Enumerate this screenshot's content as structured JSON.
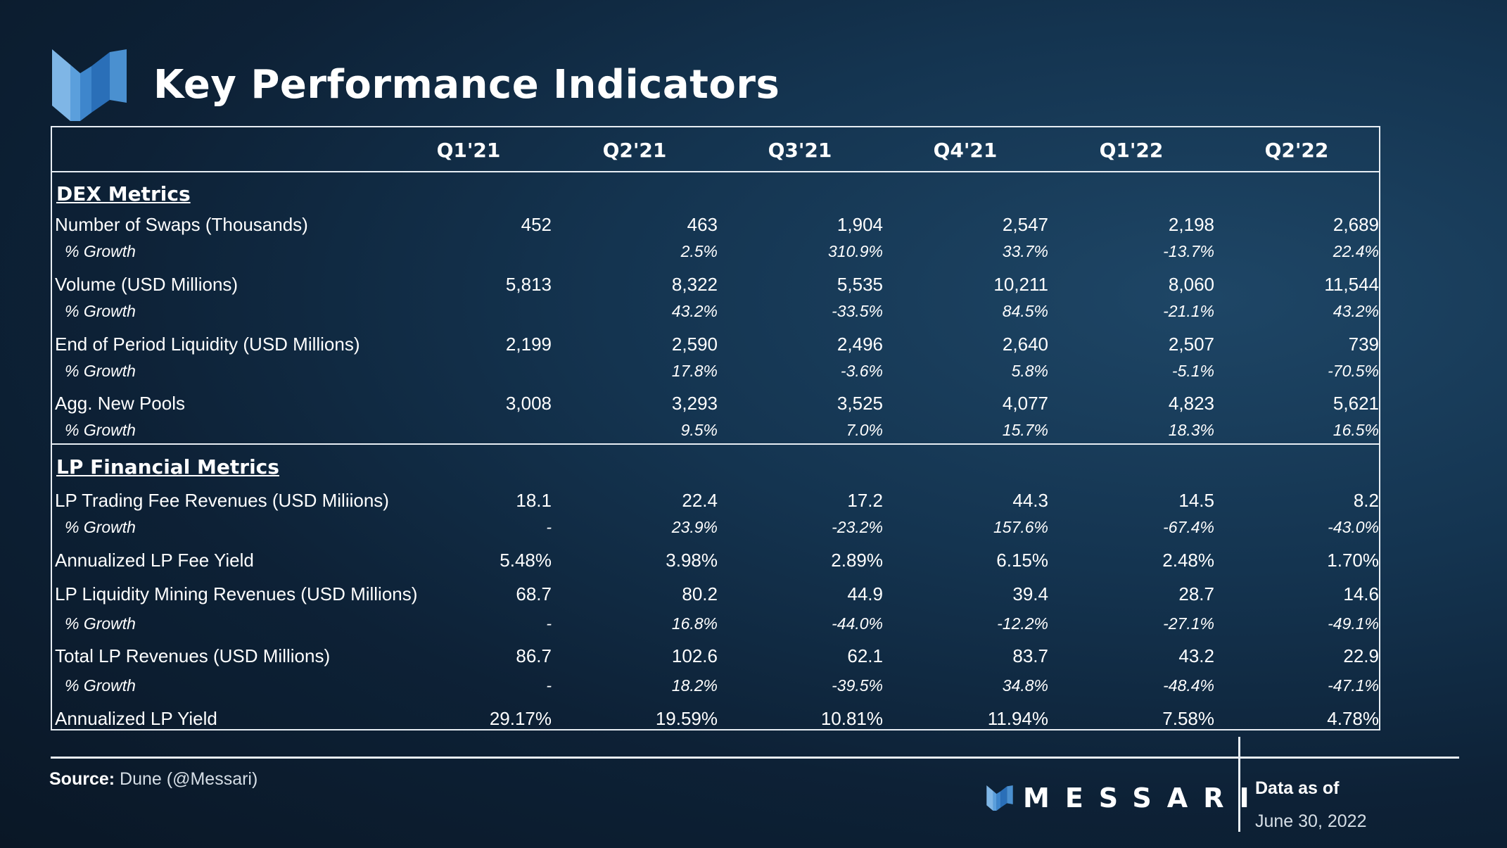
{
  "title": "Key Performance Indicators",
  "columns": [
    "Q1'21",
    "Q2'21",
    "Q3'21",
    "Q4'21",
    "Q1'22",
    "Q2'22"
  ],
  "sections": [
    {
      "heading": "DEX Metrics",
      "rows": [
        {
          "label": "Number of Swaps (Thousands)",
          "values": [
            "452",
            "463",
            "1,904",
            "2,547",
            "2,198",
            "2,689"
          ]
        },
        {
          "label": "% Growth",
          "growth": true,
          "values": [
            "",
            "2.5%",
            "310.9%",
            "33.7%",
            "-13.7%",
            "22.4%"
          ]
        },
        {
          "label": "Volume (USD Millions)",
          "values": [
            "5,813",
            "8,322",
            "5,535",
            "10,211",
            "8,060",
            "11,544"
          ]
        },
        {
          "label": "% Growth",
          "growth": true,
          "values": [
            "",
            "43.2%",
            "-33.5%",
            "84.5%",
            "-21.1%",
            "43.2%"
          ]
        },
        {
          "label": "End of Period Liquidity (USD Millions)",
          "values": [
            "2,199",
            "2,590",
            "2,496",
            "2,640",
            "2,507",
            "739"
          ]
        },
        {
          "label": "% Growth",
          "growth": true,
          "values": [
            "",
            "17.8%",
            "-3.6%",
            "5.8%",
            "-5.1%",
            "-70.5%"
          ]
        },
        {
          "label": "Agg. New Pools",
          "values": [
            "3,008",
            "3,293",
            "3,525",
            "4,077",
            "4,823",
            "5,621"
          ]
        },
        {
          "label": "% Growth",
          "growth": true,
          "values": [
            "",
            "9.5%",
            "7.0%",
            "15.7%",
            "18.3%",
            "16.5%"
          ]
        }
      ]
    },
    {
      "heading": "LP Financial Metrics",
      "rows": [
        {
          "label": "LP Trading Fee Revenues (USD Miliions)",
          "values": [
            "18.1",
            "22.4",
            "17.2",
            "44.3",
            "14.5",
            "8.2"
          ]
        },
        {
          "label": "% Growth",
          "growth": true,
          "values": [
            "-",
            "23.9%",
            "-23.2%",
            "157.6%",
            "-67.4%",
            "-43.0%"
          ]
        },
        {
          "label": "Annualized LP Fee Yield",
          "values": [
            "5.48%",
            "3.98%",
            "2.89%",
            "6.15%",
            "2.48%",
            "1.70%"
          ]
        },
        {
          "label": "LP Liquidity Mining Revenues (USD Millions)",
          "values": [
            "68.7",
            "80.2",
            "44.9",
            "39.4",
            "28.7",
            "14.6"
          ]
        },
        {
          "label": "% Growth",
          "growth": true,
          "values": [
            "-",
            "16.8%",
            "-44.0%",
            "-12.2%",
            "-27.1%",
            "-49.1%"
          ]
        },
        {
          "label": "Total LP Revenues (USD Millions)",
          "values": [
            "86.7",
            "102.6",
            "62.1",
            "83.7",
            "43.2",
            "22.9"
          ]
        },
        {
          "label": "% Growth",
          "growth": true,
          "values": [
            "-",
            "18.2%",
            "-39.5%",
            "34.8%",
            "-48.4%",
            "-47.1%"
          ]
        },
        {
          "label": "Annualized LP Yield",
          "values": [
            "29.17%",
            "19.59%",
            "10.81%",
            "11.94%",
            "7.58%",
            "4.78%"
          ]
        }
      ]
    }
  ],
  "footer": {
    "source_label": "Source:",
    "source_text": "Dune (@Messari)",
    "brand": "MESSARI",
    "asof_label": "Data as of",
    "asof_date": "June 30, 2022"
  },
  "colors": {
    "logo_light": "#7fb6e6",
    "logo_mid": "#4a90d0",
    "logo_dark": "#2a6fb8"
  }
}
